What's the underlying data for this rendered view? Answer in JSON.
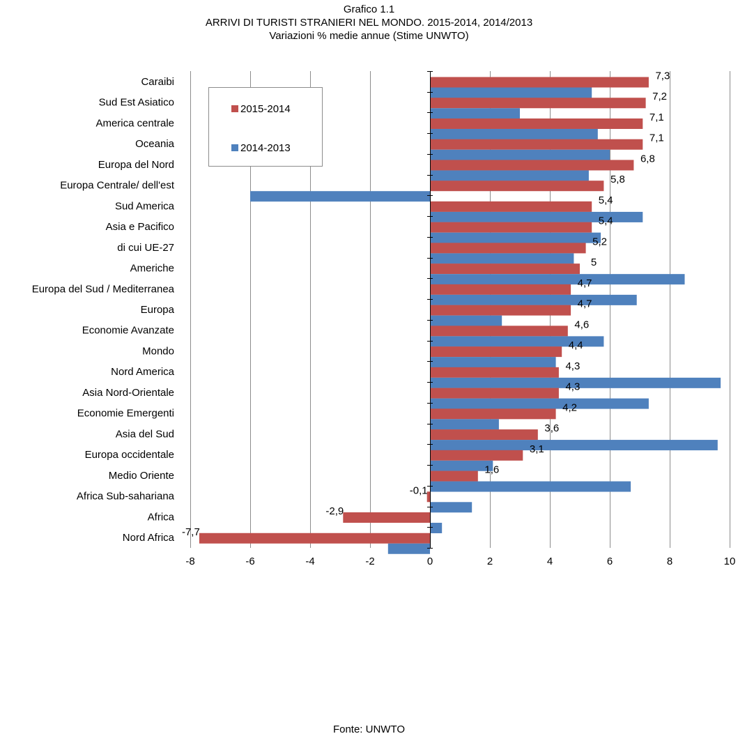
{
  "title": {
    "line1": "Grafico 1.1",
    "line2": "ARRIVI DI TURISTI STRANIERI NEL MONDO. 2015-2014, 2014/2013",
    "line3": "Variazioni % medie annue (Stime UNWTO)"
  },
  "source": "Fonte: UNWTO",
  "chart_data": {
    "type": "bar",
    "orientation": "horizontal",
    "categories": [
      "Caraibi",
      "Sud Est Asiatico",
      "America centrale",
      "Oceania",
      "Europa del Nord",
      "Europa Centrale/ dell'est",
      "Sud America",
      "Asia e Pacifico",
      "di cui UE-27",
      "Americhe",
      "Europa del Sud / Mediterranea",
      "Europa",
      "Economie Avanzate",
      "Mondo",
      "Nord America",
      "Asia Nord-Orientale",
      "Economie Emergenti",
      "Asia del Sud",
      "Europa occidentale",
      "Medio Oriente",
      "Africa Sub-sahariana",
      "Africa",
      "Nord Africa"
    ],
    "series": [
      {
        "name": "2015-2014",
        "color": "#c0504d",
        "values": [
          7.3,
          7.2,
          7.1,
          7.1,
          6.8,
          5.8,
          5.4,
          5.4,
          5.2,
          5,
          4.7,
          4.7,
          4.6,
          4.4,
          4.3,
          4.3,
          4.2,
          3.6,
          3.1,
          1.6,
          -0.1,
          -2.9,
          -7.7
        ],
        "labels": [
          "7,3",
          "7,2",
          "7,1",
          "7,1",
          "6,8",
          "5,8",
          "5,4",
          "5,4",
          "5,2",
          "5",
          "4,7",
          "4,7",
          "4,6",
          "4,4",
          "4,3",
          "4,3",
          "4,2",
          "3,6",
          "3,1",
          "1,6",
          "-0,1",
          "-2,9",
          "-7,7"
        ]
      },
      {
        "name": "2014-2013",
        "color": "#4f81bd",
        "values": [
          5.4,
          3.0,
          5.6,
          6.0,
          5.3,
          -6.0,
          7.1,
          5.7,
          4.8,
          8.5,
          6.9,
          2.4,
          5.8,
          4.2,
          9.7,
          7.3,
          2.3,
          9.6,
          2.1,
          6.7,
          1.4,
          0.4,
          -1.4
        ]
      }
    ],
    "xlim": [
      -8,
      10
    ],
    "xticks": [
      -8,
      -6,
      -4,
      -2,
      0,
      2,
      4,
      6,
      8,
      10
    ],
    "grid": true,
    "legend_position": "top-left"
  }
}
